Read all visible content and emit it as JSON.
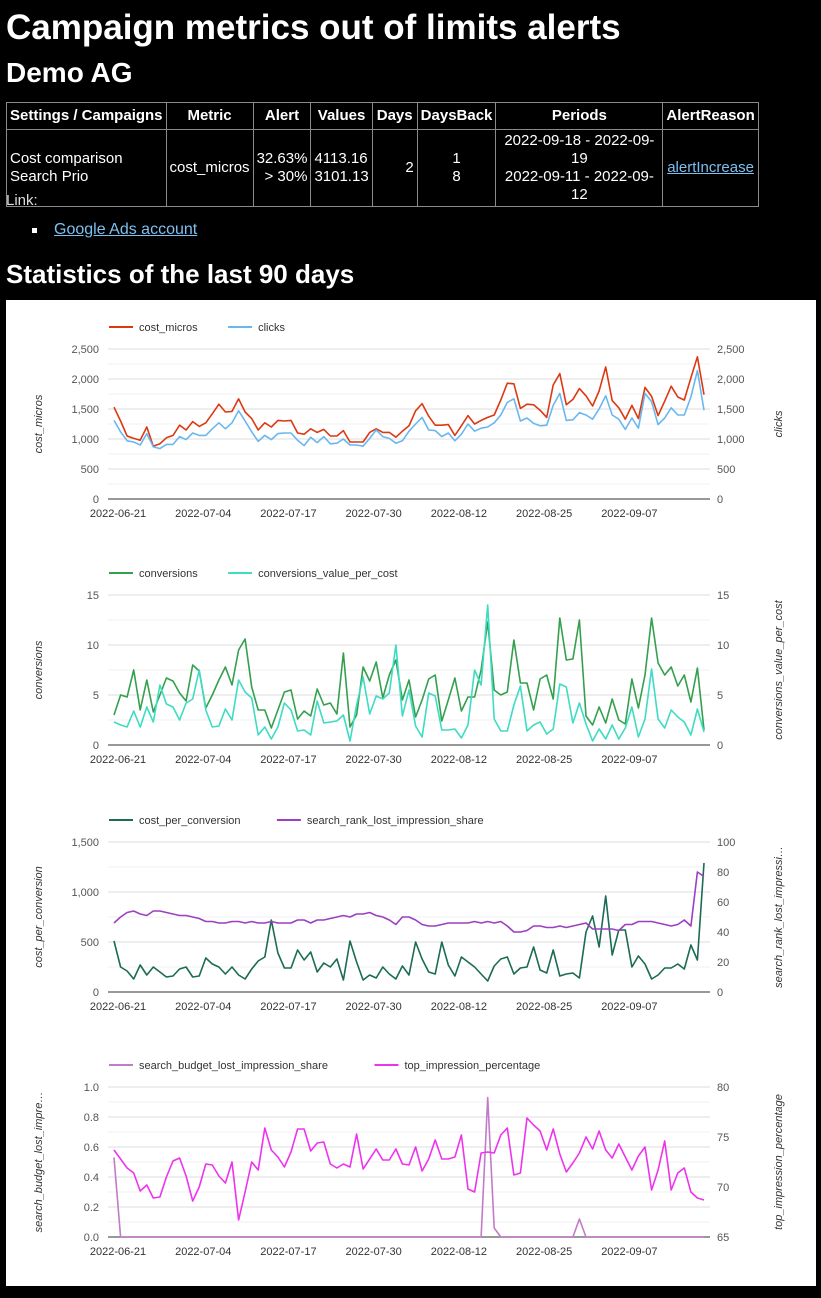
{
  "page": {
    "title": "Campaign metrics out of limits alerts",
    "account": "Demo AG",
    "stats_heading": "Statistics of the last 90 days",
    "link_label": "Link:",
    "links": [
      {
        "label": "Google Ads account"
      }
    ]
  },
  "table": {
    "headers": [
      "Settings / Campaigns",
      "Metric",
      "Alert",
      "Values",
      "Days",
      "DaysBack",
      "Periods",
      "AlertReason"
    ],
    "row": {
      "campaign_line1": "Cost comparison",
      "campaign_line2": "Search Prio",
      "metric": "cost_micros",
      "alert_line1": "32.63%",
      "alert_line2": "> 30%",
      "value_1": "4113.16",
      "value_2": "3101.13",
      "days": "2",
      "daysback_1": "1",
      "daysback_2": "8",
      "period_1": "2022-09-18 - 2022-09-19",
      "period_2": "2022-09-11 - 2022-09-12",
      "alert_reason": "alertIncrease"
    }
  },
  "chart_data": [
    {
      "type": "line",
      "x_range": [
        "2022-06-21",
        "2022-09-19"
      ],
      "x_ticks": [
        "2022-06-21",
        "2022-07-04",
        "2022-07-17",
        "2022-07-30",
        "2022-08-12",
        "2022-08-25",
        "2022-09-07"
      ],
      "legend": "top-left",
      "grid": true,
      "ylabel": "cost_micros",
      "y2label": "clicks",
      "ylim": [
        0,
        2500
      ],
      "y2lim": [
        0,
        2500
      ],
      "yticks": [
        "0",
        "500",
        "1,000",
        "1,500",
        "2,000",
        "2,500"
      ],
      "y2ticks": [
        "0",
        "500",
        "1,000",
        "1,500",
        "2,000",
        "2,500"
      ],
      "series": [
        {
          "name": "cost_micros",
          "axis": "left",
          "color": "#dc3912",
          "values": [
            1530,
            1300,
            1050,
            1010,
            980,
            1200,
            880,
            920,
            1020,
            1060,
            1230,
            1150,
            1290,
            1210,
            1270,
            1420,
            1580,
            1450,
            1460,
            1670,
            1450,
            1340,
            1150,
            1270,
            1200,
            1310,
            1300,
            1310,
            1100,
            1080,
            1170,
            1110,
            1160,
            1050,
            1050,
            1140,
            950,
            950,
            950,
            1110,
            1170,
            1110,
            1110,
            1030,
            1130,
            1220,
            1470,
            1590,
            1380,
            1230,
            1230,
            1240,
            1060,
            1220,
            1390,
            1250,
            1310,
            1360,
            1400,
            1650,
            1930,
            1920,
            1510,
            1580,
            1570,
            1480,
            1360,
            1900,
            2090,
            1570,
            1660,
            1840,
            1720,
            1550,
            1800,
            2200,
            1640,
            1520,
            1330,
            1560,
            1340,
            1860,
            1710,
            1390,
            1630,
            1880,
            1700,
            1650,
            2020,
            2370,
            1740
          ]
        },
        {
          "name": "clicks",
          "axis": "right",
          "color": "#6ab7f0",
          "values": [
            1310,
            1120,
            970,
            950,
            900,
            1090,
            870,
            840,
            910,
            910,
            1040,
            990,
            1100,
            1060,
            1060,
            1170,
            1270,
            1170,
            1270,
            1470,
            1300,
            1120,
            960,
            1060,
            990,
            1090,
            1100,
            1100,
            980,
            890,
            1030,
            940,
            1040,
            920,
            930,
            1000,
            900,
            900,
            880,
            1010,
            1150,
            1040,
            1010,
            930,
            970,
            1130,
            1250,
            1360,
            1150,
            1140,
            1040,
            1100,
            970,
            1080,
            1250,
            1130,
            1180,
            1200,
            1270,
            1400,
            1610,
            1670,
            1300,
            1350,
            1260,
            1220,
            1230,
            1560,
            1760,
            1310,
            1320,
            1440,
            1400,
            1330,
            1500,
            1720,
            1400,
            1330,
            1160,
            1350,
            1180,
            1760,
            1620,
            1240,
            1350,
            1520,
            1400,
            1400,
            1700,
            2140,
            1480
          ]
        }
      ]
    },
    {
      "type": "line",
      "x_range": [
        "2022-06-21",
        "2022-09-19"
      ],
      "x_ticks": [
        "2022-06-21",
        "2022-07-04",
        "2022-07-17",
        "2022-07-30",
        "2022-08-12",
        "2022-08-25",
        "2022-09-07"
      ],
      "legend": "top-left",
      "grid": true,
      "ylabel": "conversions",
      "y2label": "conversions_value_per_cost",
      "ylim": [
        0,
        15
      ],
      "y2lim": [
        0,
        15
      ],
      "yticks": [
        "0",
        "5",
        "10",
        "15"
      ],
      "y2ticks": [
        "0",
        "5",
        "10",
        "15"
      ],
      "series": [
        {
          "name": "conversions",
          "axis": "left",
          "color": "#34a04e",
          "values": [
            3,
            5,
            4.8,
            7.5,
            3.5,
            6.5,
            3.3,
            5,
            6.7,
            6.4,
            5.2,
            4.4,
            8,
            7.4,
            3.7,
            5,
            6.5,
            7.8,
            6,
            9.5,
            10.6,
            5.8,
            3.5,
            3.5,
            1.7,
            3.5,
            5.3,
            5.5,
            2.6,
            3.4,
            2.9,
            5.6,
            4,
            4.2,
            3.1,
            9.2,
            1.8,
            3,
            7.8,
            6.4,
            8.3,
            4.7,
            7,
            8.5,
            4.5,
            6.5,
            2.8,
            4.5,
            6.6,
            7,
            2.4,
            4.5,
            6.7,
            3.4,
            4.8,
            4.8,
            7.5,
            12.3,
            5.5,
            5,
            5.3,
            10.5,
            6.2,
            6.2,
            3.5,
            6.6,
            7,
            4.6,
            12.7,
            8.5,
            8.6,
            12.5,
            2.9,
            2,
            3.8,
            2.2,
            4.6,
            2.5,
            2.1,
            6.6,
            3.7,
            7,
            12.7,
            8.2,
            7,
            7.8,
            5.9,
            7,
            4.3,
            7.7,
            1.5
          ]
        },
        {
          "name": "conversions_value_per_cost",
          "axis": "right",
          "color": "#3edcc2",
          "values": [
            2.3,
            2,
            1.8,
            3.4,
            1.8,
            3.8,
            2.3,
            6,
            4.1,
            3.8,
            2.5,
            4.2,
            4.6,
            7.5,
            3.5,
            1.8,
            1.9,
            3.6,
            2.5,
            6.5,
            5.3,
            4.7,
            1,
            1.8,
            0.6,
            1.8,
            4.2,
            3.5,
            1.4,
            1.5,
            1,
            4.4,
            2.2,
            2.3,
            2.4,
            3,
            0.4,
            4,
            6.8,
            3.1,
            4.9,
            4.6,
            5.2,
            10,
            2.9,
            5.5,
            1.9,
            0.8,
            5.2,
            4.9,
            1.5,
            1.5,
            1.6,
            0.7,
            2,
            7.5,
            6,
            14,
            2.6,
            1.4,
            1.4,
            4,
            5.9,
            1.4,
            2,
            2.3,
            1.1,
            1.6,
            6.1,
            5.8,
            2.2,
            4.2,
            2.1,
            0.4,
            1.6,
            0.6,
            2,
            0.6,
            1.7,
            3.8,
            0.8,
            2.6,
            7.6,
            2.6,
            1.7,
            3.5,
            2.8,
            2.3,
            1,
            3.6,
            1.3
          ]
        }
      ]
    },
    {
      "type": "line",
      "x_range": [
        "2022-06-21",
        "2022-09-19"
      ],
      "x_ticks": [
        "2022-06-21",
        "2022-07-04",
        "2022-07-17",
        "2022-07-30",
        "2022-08-12",
        "2022-08-25",
        "2022-09-07"
      ],
      "legend": "top-left",
      "grid": true,
      "ylabel": "cost_per_conversion",
      "y2label": "search_rank_lost_impressi…",
      "ylim": [
        0,
        1500
      ],
      "y2lim": [
        0,
        100
      ],
      "yticks": [
        "0",
        "500",
        "1,000",
        "1,500"
      ],
      "y2ticks": [
        "0",
        "20",
        "40",
        "60",
        "80",
        "100"
      ],
      "series": [
        {
          "name": "cost_per_conversion",
          "axis": "left",
          "color": "#1b6b55",
          "values": [
            510,
            250,
            210,
            130,
            270,
            170,
            250,
            200,
            150,
            160,
            230,
            250,
            150,
            160,
            340,
            280,
            250,
            180,
            250,
            170,
            130,
            230,
            310,
            350,
            720,
            390,
            240,
            240,
            420,
            320,
            400,
            200,
            290,
            250,
            330,
            120,
            510,
            300,
            120,
            170,
            140,
            250,
            180,
            130,
            260,
            170,
            500,
            330,
            200,
            180,
            500,
            270,
            160,
            350,
            300,
            250,
            180,
            110,
            260,
            330,
            350,
            180,
            240,
            250,
            450,
            220,
            190,
            420,
            160,
            180,
            190,
            140,
            600,
            760,
            450,
            960,
            370,
            620,
            620,
            250,
            360,
            280,
            130,
            170,
            240,
            240,
            280,
            230,
            470,
            320,
            1290
          ]
        },
        {
          "name": "search_rank_lost_impression_share",
          "axis": "right",
          "color": "#9c3fc0",
          "values": [
            46,
            50,
            53,
            54,
            52,
            51,
            54,
            54,
            53,
            52,
            51,
            51,
            50,
            49,
            47,
            47,
            46,
            46,
            47,
            47,
            46,
            47,
            46,
            46,
            47,
            46,
            46,
            46,
            48,
            48,
            46,
            48,
            48,
            49,
            50,
            51,
            50,
            52,
            52,
            53,
            51,
            50,
            48,
            45,
            50,
            50,
            48,
            45,
            44,
            44,
            45,
            46,
            46,
            46,
            46,
            47,
            46,
            47,
            46,
            47,
            44,
            40,
            40,
            41,
            44,
            44,
            43,
            43,
            44,
            43,
            44,
            45,
            46,
            42,
            42,
            42,
            42,
            41,
            45,
            45,
            47,
            47,
            47,
            46,
            45,
            44,
            45,
            48,
            44,
            80,
            77
          ]
        }
      ]
    },
    {
      "type": "line",
      "x_range": [
        "2022-06-21",
        "2022-09-19"
      ],
      "x_ticks": [
        "2022-06-21",
        "2022-07-04",
        "2022-07-17",
        "2022-07-30",
        "2022-08-12",
        "2022-08-25",
        "2022-09-07"
      ],
      "legend": "top-left",
      "grid": true,
      "ylabel": "search_budget_lost_impre…",
      "y2label": "top_impression_percentage",
      "ylim": [
        0,
        1
      ],
      "y2lim": [
        65,
        80
      ],
      "yticks": [
        "0.0",
        "0.2",
        "0.4",
        "0.6",
        "0.8",
        "1.0"
      ],
      "y2ticks": [
        "65",
        "70",
        "75",
        "80"
      ],
      "series": [
        {
          "name": "search_budget_lost_impression_share",
          "axis": "left",
          "color": "#c27bc8",
          "values": [
            0.53,
            0,
            0,
            0,
            0,
            0,
            0,
            0,
            0,
            0,
            0,
            0,
            0,
            0,
            0,
            0,
            0,
            0,
            0,
            0,
            0,
            0,
            0,
            0,
            0,
            0,
            0,
            0,
            0,
            0,
            0,
            0,
            0,
            0,
            0,
            0,
            0,
            0,
            0,
            0,
            0,
            0,
            0,
            0,
            0,
            0,
            0,
            0,
            0,
            0,
            0,
            0,
            0,
            0,
            0,
            0,
            0,
            0.93,
            0.06,
            0,
            0,
            0,
            0,
            0,
            0,
            0,
            0,
            0,
            0,
            0,
            0,
            0.12,
            0,
            0,
            0,
            0,
            0,
            0,
            0,
            0,
            0,
            0,
            0,
            0,
            0,
            0,
            0,
            0,
            0,
            0,
            0
          ]
        },
        {
          "name": "top_impression_percentage",
          "axis": "right",
          "color": "#ee33ee",
          "values": [
            73.7,
            72.8,
            71.9,
            71.4,
            69.6,
            70.2,
            68.9,
            69.0,
            71.0,
            72.6,
            72.9,
            71.1,
            68.6,
            70.0,
            72.3,
            72.2,
            71.1,
            70.4,
            72.5,
            66.7,
            69.5,
            72.5,
            71.7,
            75.9,
            73.7,
            73.0,
            72.0,
            73.5,
            75.8,
            75.8,
            73.6,
            74.4,
            74.5,
            72.3,
            71.9,
            72.3,
            72.0,
            75.3,
            71.8,
            72.8,
            73.8,
            72.7,
            72.7,
            73.8,
            72.3,
            72.2,
            74.0,
            71.6,
            72.8,
            74.7,
            72.8,
            72.8,
            73.0,
            75.2,
            69.8,
            69.5,
            73.4,
            73.5,
            73.4,
            75.2,
            75.9,
            71.2,
            71.4,
            76.9,
            76.2,
            75.6,
            73.7,
            75.8,
            73.3,
            71.5,
            72.4,
            73.4,
            75.0,
            73.8,
            75.6,
            73.7,
            72.9,
            74.3,
            73.0,
            71.7,
            73.1,
            74.0,
            69.7,
            71.7,
            74.6,
            69.7,
            71.4,
            71.9,
            69.5,
            68.9,
            68.7
          ]
        }
      ]
    }
  ]
}
